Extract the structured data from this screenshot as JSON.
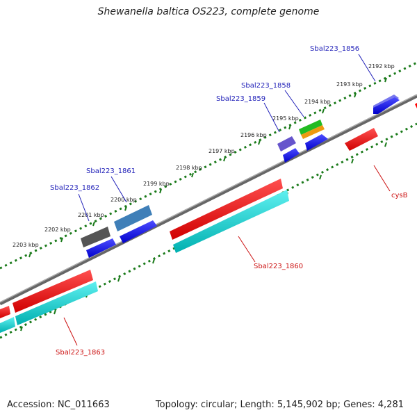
{
  "title": "Shewanella baltica OS223, complete genome",
  "footer": {
    "accession": "Accession: NC_011663",
    "summary": "Topology: circular; Length: 5,145,902 bp; Genes: 4,281"
  },
  "scale_labels": [
    "2192 kbp",
    "2193 kbp",
    "2194 kbp",
    "2195 kbp",
    "2196 kbp",
    "2197 kbp",
    "2198 kbp",
    "2199 kbp",
    "2200 kbp",
    "2201 kbp",
    "2202 kbp",
    "2203 kbp"
  ],
  "gene_labels_top": [
    "Sbal223_1856",
    "Sbal223_1858",
    "Sbal223_1859",
    "Sbal223_1861",
    "Sbal223_1862"
  ],
  "gene_labels_bottom": [
    "cysB",
    "Sbal223_1860",
    "Sbal223_1863"
  ],
  "colors": {
    "forward_label": "#1f1fb8",
    "reverse_label": "#cc1111",
    "cds_blue": "#0000ff",
    "gene_red": "#ff0000",
    "cds_cyan": "#00d4d4",
    "backbone": "#777777",
    "scale_dots": "#1a7a1a"
  }
}
